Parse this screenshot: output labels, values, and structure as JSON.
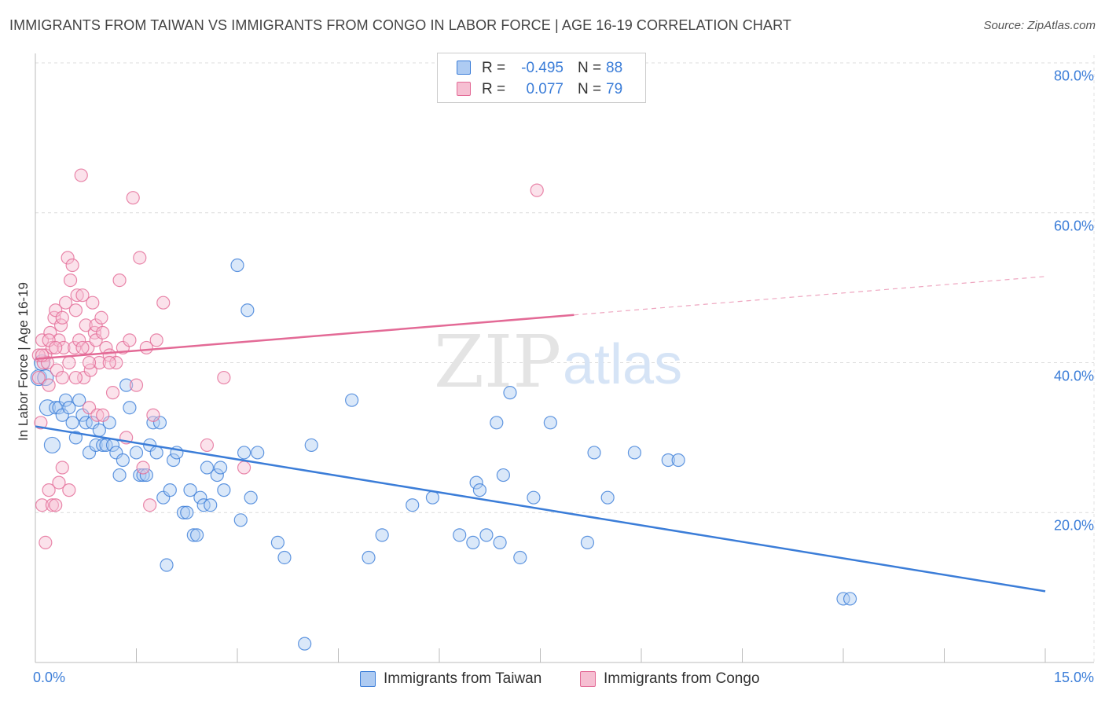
{
  "chart_data": {
    "type": "scatter",
    "title": "IMMIGRANTS FROM TAIWAN VS IMMIGRANTS FROM CONGO IN LABOR FORCE | AGE 16-19 CORRELATION CHART",
    "source": "Source: ZipAtlas.com",
    "ylabel": "In Labor Force | Age 16-19",
    "xlabel": "",
    "xlim": [
      0,
      15
    ],
    "ylim": [
      0,
      80
    ],
    "x_tick_labels": {
      "min": "0.0%",
      "max": "15.0%"
    },
    "y_ticks": [
      {
        "value": 80,
        "label": "80.0%"
      },
      {
        "value": 60,
        "label": "60.0%"
      },
      {
        "value": 40,
        "label": "40.0%"
      },
      {
        "value": 20,
        "label": "20.0%"
      }
    ],
    "grid": true,
    "watermark": {
      "part1": "ZIP",
      "part2": "atlas"
    },
    "series": [
      {
        "name": "Immigrants from Taiwan",
        "color": "#3b7dd8",
        "fill": "#aecbf2",
        "R": "-0.495",
        "N": "88",
        "trend": {
          "x0": 0.0,
          "y0": 31.5,
          "x1": 15.0,
          "y1": 9.5,
          "dashed_from": null
        },
        "points": [
          [
            0.05,
            38
          ],
          [
            0.1,
            40
          ],
          [
            0.15,
            38
          ],
          [
            0.18,
            34
          ],
          [
            0.25,
            29
          ],
          [
            0.3,
            34
          ],
          [
            0.35,
            34
          ],
          [
            0.4,
            33
          ],
          [
            0.45,
            35
          ],
          [
            0.5,
            34
          ],
          [
            0.55,
            32
          ],
          [
            0.6,
            30
          ],
          [
            0.65,
            35
          ],
          [
            0.7,
            33
          ],
          [
            0.75,
            32
          ],
          [
            0.8,
            28
          ],
          [
            0.85,
            32
          ],
          [
            0.9,
            29
          ],
          [
            0.95,
            31
          ],
          [
            1.0,
            29
          ],
          [
            1.05,
            29
          ],
          [
            1.1,
            32
          ],
          [
            1.15,
            29
          ],
          [
            1.2,
            28
          ],
          [
            1.25,
            25
          ],
          [
            1.3,
            27
          ],
          [
            1.35,
            37
          ],
          [
            1.4,
            34
          ],
          [
            1.5,
            28
          ],
          [
            1.55,
            25
          ],
          [
            1.6,
            25
          ],
          [
            1.65,
            25
          ],
          [
            1.7,
            29
          ],
          [
            1.75,
            32
          ],
          [
            1.8,
            28
          ],
          [
            1.85,
            32
          ],
          [
            1.9,
            22
          ],
          [
            1.95,
            13
          ],
          [
            2.0,
            23
          ],
          [
            2.05,
            27
          ],
          [
            2.1,
            28
          ],
          [
            2.2,
            20
          ],
          [
            2.25,
            20
          ],
          [
            2.3,
            23
          ],
          [
            2.35,
            17
          ],
          [
            2.4,
            17
          ],
          [
            2.45,
            22
          ],
          [
            2.5,
            21
          ],
          [
            2.55,
            26
          ],
          [
            2.6,
            21
          ],
          [
            2.7,
            25
          ],
          [
            2.75,
            26
          ],
          [
            2.8,
            23
          ],
          [
            3.0,
            53
          ],
          [
            3.05,
            19
          ],
          [
            3.1,
            28
          ],
          [
            3.15,
            47
          ],
          [
            3.2,
            22
          ],
          [
            3.3,
            28
          ],
          [
            3.6,
            16
          ],
          [
            3.7,
            14
          ],
          [
            4.0,
            2.5
          ],
          [
            4.1,
            29
          ],
          [
            4.7,
            35
          ],
          [
            4.95,
            14
          ],
          [
            5.15,
            17
          ],
          [
            5.6,
            21
          ],
          [
            5.9,
            22
          ],
          [
            6.3,
            17
          ],
          [
            6.5,
            16
          ],
          [
            6.55,
            24
          ],
          [
            6.6,
            23
          ],
          [
            6.7,
            17
          ],
          [
            6.85,
            32
          ],
          [
            6.9,
            16
          ],
          [
            6.95,
            25
          ],
          [
            7.05,
            36
          ],
          [
            7.2,
            14
          ],
          [
            7.4,
            22
          ],
          [
            7.65,
            32
          ],
          [
            8.2,
            16
          ],
          [
            8.3,
            28
          ],
          [
            8.5,
            22
          ],
          [
            8.9,
            28
          ],
          [
            9.4,
            27
          ],
          [
            9.55,
            27
          ],
          [
            12.0,
            8.5
          ],
          [
            12.1,
            8.5
          ]
        ]
      },
      {
        "name": "Immigrants from Congo",
        "color": "#e36a96",
        "fill": "#f6bfd2",
        "R": "0.077",
        "N": "79",
        "trend": {
          "x0": 0.0,
          "y0": 40.5,
          "x1": 15.0,
          "y1": 51.5,
          "dashed_from": 8.0
        },
        "points": [
          [
            0.05,
            38
          ],
          [
            0.08,
            32
          ],
          [
            0.1,
            43
          ],
          [
            0.12,
            40
          ],
          [
            0.15,
            41
          ],
          [
            0.18,
            40
          ],
          [
            0.2,
            37
          ],
          [
            0.22,
            44
          ],
          [
            0.25,
            42
          ],
          [
            0.28,
            46
          ],
          [
            0.3,
            47
          ],
          [
            0.32,
            39
          ],
          [
            0.35,
            43
          ],
          [
            0.38,
            45
          ],
          [
            0.4,
            46
          ],
          [
            0.42,
            42
          ],
          [
            0.45,
            48
          ],
          [
            0.48,
            54
          ],
          [
            0.5,
            40
          ],
          [
            0.52,
            51
          ],
          [
            0.55,
            53
          ],
          [
            0.58,
            42
          ],
          [
            0.6,
            47
          ],
          [
            0.62,
            49
          ],
          [
            0.65,
            43
          ],
          [
            0.68,
            65
          ],
          [
            0.7,
            49
          ],
          [
            0.72,
            38
          ],
          [
            0.75,
            45
          ],
          [
            0.78,
            42
          ],
          [
            0.8,
            34
          ],
          [
            0.82,
            39
          ],
          [
            0.85,
            48
          ],
          [
            0.88,
            44
          ],
          [
            0.9,
            45
          ],
          [
            0.92,
            33
          ],
          [
            0.95,
            40
          ],
          [
            0.98,
            46
          ],
          [
            1.0,
            33
          ],
          [
            1.05,
            42
          ],
          [
            1.1,
            41
          ],
          [
            1.15,
            36
          ],
          [
            1.2,
            40
          ],
          [
            1.25,
            51
          ],
          [
            1.3,
            42
          ],
          [
            1.35,
            30
          ],
          [
            1.4,
            43
          ],
          [
            1.45,
            62
          ],
          [
            1.5,
            37
          ],
          [
            1.55,
            54
          ],
          [
            1.6,
            26
          ],
          [
            1.65,
            42
          ],
          [
            1.7,
            21
          ],
          [
            1.75,
            33
          ],
          [
            1.8,
            43
          ],
          [
            1.9,
            48
          ],
          [
            0.1,
            21
          ],
          [
            0.15,
            16
          ],
          [
            0.2,
            23
          ],
          [
            0.25,
            21
          ],
          [
            0.3,
            21
          ],
          [
            0.35,
            24
          ],
          [
            0.4,
            26
          ],
          [
            0.5,
            23
          ],
          [
            2.55,
            29
          ],
          [
            2.8,
            38
          ],
          [
            3.1,
            26
          ],
          [
            7.45,
            63
          ],
          [
            0.05,
            41
          ],
          [
            0.1,
            41
          ],
          [
            0.2,
            43
          ],
          [
            0.3,
            42
          ],
          [
            0.4,
            38
          ],
          [
            0.6,
            38
          ],
          [
            0.7,
            42
          ],
          [
            0.8,
            40
          ],
          [
            0.9,
            43
          ],
          [
            1.0,
            44
          ],
          [
            1.1,
            40
          ]
        ]
      }
    ]
  },
  "legend_top": {
    "rows": [
      {
        "r_label": "R =",
        "r_value": "-0.495",
        "n_label": "N =",
        "n_value": "88"
      },
      {
        "r_label": "R =",
        "r_value": "0.077",
        "n_label": "N =",
        "n_value": "79"
      }
    ]
  },
  "legend_bottom": {
    "items": [
      {
        "label": "Immigrants from Taiwan"
      },
      {
        "label": "Immigrants from Congo"
      }
    ]
  }
}
